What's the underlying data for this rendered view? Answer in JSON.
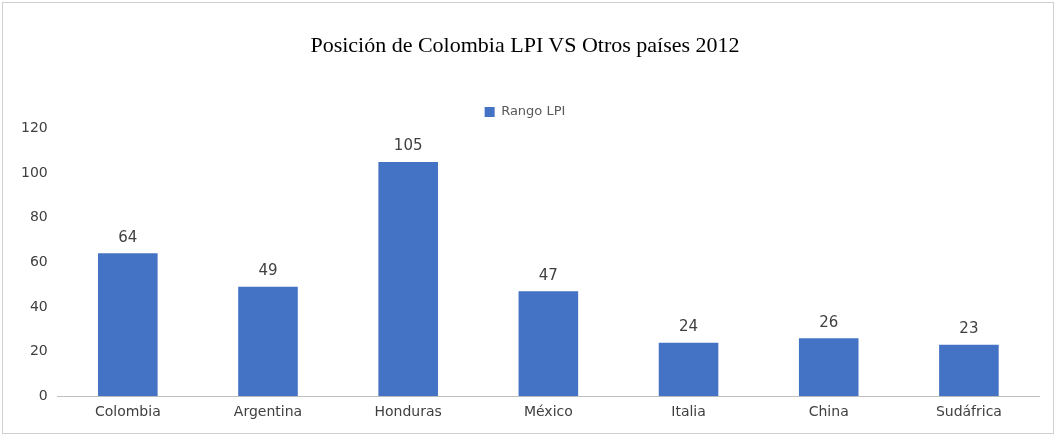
{
  "chart_data": {
    "type": "bar",
    "title": "Posición de Colombia LPI VS Otros países 2012",
    "categories": [
      "Colombia",
      "Argentina",
      "Honduras",
      "México",
      "Italia",
      "China",
      "Sudáfrica"
    ],
    "series": [
      {
        "name": "Rango LPI",
        "color": "#4472c4",
        "values": [
          64,
          49,
          105,
          47,
          24,
          26,
          23
        ]
      }
    ],
    "ylim": [
      0,
      120
    ],
    "yticks": [
      0,
      20,
      40,
      60,
      80,
      100,
      120
    ],
    "grid": false,
    "legend": "top",
    "data_labels": true
  }
}
